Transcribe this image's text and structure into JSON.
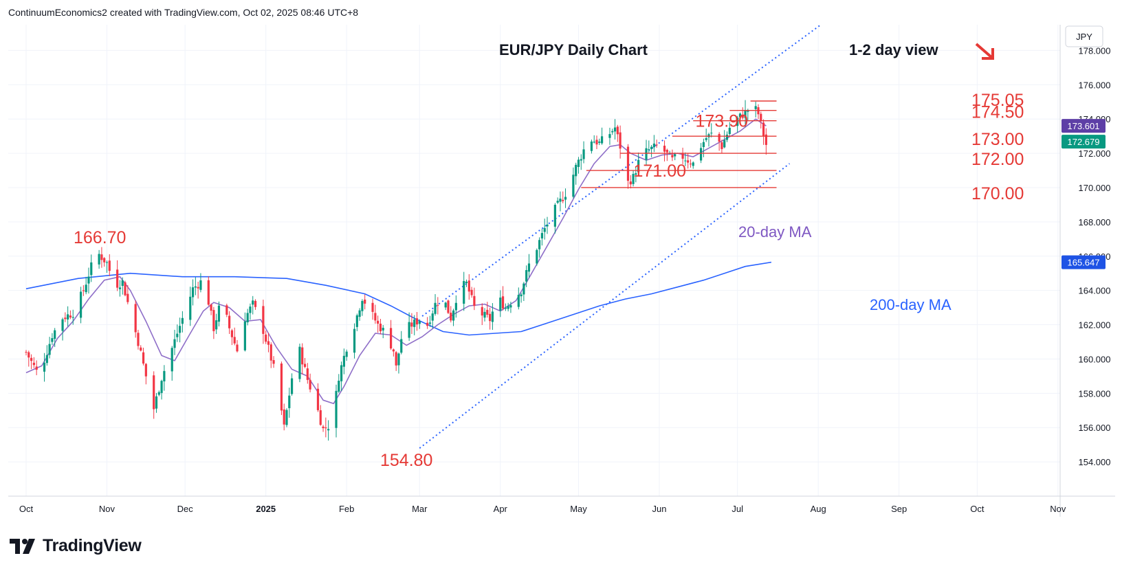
{
  "header": {
    "caption": "ContinuumEconomics2 created with TradingView.com, Oct 02, 2025 08:46 UTC+8"
  },
  "footer": {
    "brand": "TradingView"
  },
  "chart_data": {
    "type": "candlestick",
    "title": "EUR/JPY Daily Chart",
    "subtitle": "1-2 day view",
    "currency": "JPY",
    "y_ticks": [
      "154.000",
      "156.000",
      "158.000",
      "160.000",
      "162.000",
      "164.000",
      "166.000",
      "168.000",
      "170.000",
      "172.000",
      "174.000",
      "176.000",
      "178.000"
    ],
    "ylim": [
      152,
      179.5
    ],
    "x_ticks": [
      {
        "label": "Oct",
        "day": 0
      },
      {
        "label": "Nov",
        "day": 31
      },
      {
        "label": "Dec",
        "day": 61
      },
      {
        "label": "2025",
        "day": 92,
        "bold": true
      },
      {
        "label": "Feb",
        "day": 123
      },
      {
        "label": "Mar",
        "day": 151
      },
      {
        "label": "Apr",
        "day": 182
      },
      {
        "label": "May",
        "day": 212
      },
      {
        "label": "Jun",
        "day": 243
      },
      {
        "label": "Jul",
        "day": 273
      },
      {
        "label": "Aug",
        "day": 304
      },
      {
        "label": "Sep",
        "day": 335
      },
      {
        "label": "Oct",
        "day": 365
      },
      {
        "label": "Nov",
        "day": 396
      }
    ],
    "path_anchors": [
      [
        0,
        160.4
      ],
      [
        5,
        159.0
      ],
      [
        10,
        161.4
      ],
      [
        14,
        162.4
      ],
      [
        18,
        162.7
      ],
      [
        22,
        164.0
      ],
      [
        25,
        165.4
      ],
      [
        28,
        166.1
      ],
      [
        31,
        165.6
      ],
      [
        34,
        164.3
      ],
      [
        37,
        164.5
      ],
      [
        40,
        162.7
      ],
      [
        43,
        161.0
      ],
      [
        46,
        159.0
      ],
      [
        49,
        157.1
      ],
      [
        52,
        158.9
      ],
      [
        55,
        160.2
      ],
      [
        58,
        161.5
      ],
      [
        61,
        162.8
      ],
      [
        64,
        164.1
      ],
      [
        67,
        164.5
      ],
      [
        69,
        164.1
      ],
      [
        72,
        161.8
      ],
      [
        75,
        163.5
      ],
      [
        78,
        161.8
      ],
      [
        81,
        160.5
      ],
      [
        84,
        162.4
      ],
      [
        87,
        163.2
      ],
      [
        90,
        162.2
      ],
      [
        93,
        160.6
      ],
      [
        96,
        158.9
      ],
      [
        99,
        156.0
      ],
      [
        102,
        158.9
      ],
      [
        105,
        160.5
      ],
      [
        108,
        158.8
      ],
      [
        111,
        157.5
      ],
      [
        114,
        155.9
      ],
      [
        116,
        156.1
      ],
      [
        118,
        156.9
      ],
      [
        120,
        159.0
      ],
      [
        123,
        160.7
      ],
      [
        126,
        162.0
      ],
      [
        129,
        163.6
      ],
      [
        132,
        162.8
      ],
      [
        135,
        162.0
      ],
      [
        138,
        161.5
      ],
      [
        141,
        160.5
      ],
      [
        142,
        159.5
      ],
      [
        144,
        161.2
      ],
      [
        147,
        161.9
      ],
      [
        151,
        162.3
      ],
      [
        154,
        162.0
      ],
      [
        157,
        163.2
      ],
      [
        160,
        163.6
      ],
      [
        163,
        162.4
      ],
      [
        166,
        164.1
      ],
      [
        169,
        164.4
      ],
      [
        172,
        163.0
      ],
      [
        175,
        162.6
      ],
      [
        178,
        162.3
      ],
      [
        181,
        163.6
      ],
      [
        184,
        163.0
      ],
      [
        187,
        163.5
      ],
      [
        190,
        164.0
      ],
      [
        193,
        165.5
      ],
      [
        196,
        166.5
      ],
      [
        199,
        167.6
      ],
      [
        202,
        168.5
      ],
      [
        205,
        169.2
      ],
      [
        208,
        169.9
      ],
      [
        211,
        171.2
      ],
      [
        214,
        172.2
      ],
      [
        217,
        172.8
      ],
      [
        220,
        172.6
      ],
      [
        223,
        173.0
      ],
      [
        226,
        173.5
      ],
      [
        228,
        172.4
      ],
      [
        229,
        171.0
      ],
      [
        231,
        170.3
      ],
      [
        233,
        170.6
      ],
      [
        236,
        171.9
      ],
      [
        239,
        172.2
      ],
      [
        242,
        172.4
      ],
      [
        245,
        172.1
      ],
      [
        248,
        171.6
      ],
      [
        251,
        171.9
      ],
      [
        254,
        171.6
      ],
      [
        256,
        171.4
      ],
      [
        258,
        172.2
      ],
      [
        261,
        172.9
      ],
      [
        264,
        173.2
      ],
      [
        267,
        172.4
      ],
      [
        270,
        173.5
      ],
      [
        273,
        174.0
      ],
      [
        276,
        174.4
      ],
      [
        279,
        174.8
      ],
      [
        281,
        174.3
      ],
      [
        283,
        173.1
      ],
      [
        284,
        172.5
      ],
      [
        286,
        172.68
      ]
    ],
    "ma20": [
      [
        0,
        159.2
      ],
      [
        6,
        159.6
      ],
      [
        12,
        161.2
      ],
      [
        18,
        162.2
      ],
      [
        24,
        163.5
      ],
      [
        30,
        164.6
      ],
      [
        36,
        164.8
      ],
      [
        40,
        164.0
      ],
      [
        46,
        162.2
      ],
      [
        52,
        160.2
      ],
      [
        57,
        159.9
      ],
      [
        63,
        161.5
      ],
      [
        68,
        162.8
      ],
      [
        72,
        163.3
      ],
      [
        78,
        163.0
      ],
      [
        84,
        162.2
      ],
      [
        90,
        162.3
      ],
      [
        96,
        160.7
      ],
      [
        102,
        159.4
      ],
      [
        108,
        159.0
      ],
      [
        114,
        157.6
      ],
      [
        118,
        157.4
      ],
      [
        122,
        158.4
      ],
      [
        128,
        160.2
      ],
      [
        134,
        161.5
      ],
      [
        140,
        161.4
      ],
      [
        146,
        160.8
      ],
      [
        152,
        161.3
      ],
      [
        158,
        162.0
      ],
      [
        164,
        162.6
      ],
      [
        170,
        163.1
      ],
      [
        176,
        163.2
      ],
      [
        182,
        162.8
      ],
      [
        188,
        163.4
      ],
      [
        194,
        165.0
      ],
      [
        200,
        166.6
      ],
      [
        206,
        168.2
      ],
      [
        212,
        169.9
      ],
      [
        218,
        171.4
      ],
      [
        224,
        172.4
      ],
      [
        228,
        172.5
      ],
      [
        232,
        172.0
      ],
      [
        238,
        171.6
      ],
      [
        244,
        171.9
      ],
      [
        250,
        172.0
      ],
      [
        256,
        171.8
      ],
      [
        262,
        172.3
      ],
      [
        268,
        172.8
      ],
      [
        274,
        173.3
      ],
      [
        280,
        174.0
      ],
      [
        284,
        173.601
      ]
    ],
    "ma200": [
      [
        0,
        164.1
      ],
      [
        20,
        164.7
      ],
      [
        40,
        165.0
      ],
      [
        60,
        164.8
      ],
      [
        80,
        164.8
      ],
      [
        100,
        164.7
      ],
      [
        115,
        164.3
      ],
      [
        130,
        163.8
      ],
      [
        140,
        163.1
      ],
      [
        150,
        162.3
      ],
      [
        160,
        161.6
      ],
      [
        170,
        161.4
      ],
      [
        180,
        161.5
      ],
      [
        190,
        161.6
      ],
      [
        200,
        162.1
      ],
      [
        210,
        162.6
      ],
      [
        220,
        163.1
      ],
      [
        230,
        163.5
      ],
      [
        240,
        163.8
      ],
      [
        250,
        164.2
      ],
      [
        260,
        164.6
      ],
      [
        268,
        165.0
      ],
      [
        276,
        165.4
      ],
      [
        286,
        165.647
      ]
    ],
    "channel_upper": [
      [
        152,
        162.5
      ],
      [
        305,
        179.5
      ]
    ],
    "channel_lower": [
      [
        151,
        154.8
      ],
      [
        293,
        171.4
      ]
    ],
    "levels": [
      {
        "value": 175.05,
        "label": "175.05",
        "x0": 278,
        "x1": 288
      },
      {
        "value": 174.5,
        "label": "174.50",
        "x0": 270,
        "x1": 288
      },
      {
        "value": 173.9,
        "label": "173.90",
        "x0": 256,
        "x1": 288
      },
      {
        "value": 173.0,
        "label": "173.00",
        "x0": 248,
        "x1": 288
      },
      {
        "value": 172.0,
        "label": "172.00",
        "x0": 228,
        "x1": 288
      },
      {
        "value": 171.0,
        "label": "171.00",
        "x0": 215,
        "x1": 288
      },
      {
        "value": 170.0,
        "label": "170.00",
        "x0": 213,
        "x1": 288
      }
    ],
    "annotations": [
      {
        "text": "166.70",
        "day": 28,
        "price": 166.7
      },
      {
        "text": "154.80",
        "day": 151,
        "price": 154.8
      },
      {
        "text": "20-day MA"
      },
      {
        "text": "200-day MA"
      }
    ],
    "last_prices": [
      {
        "label": "173.601",
        "value": 173.601,
        "color": "#5d3fa6"
      },
      {
        "label": "172.679",
        "value": 172.679,
        "color": "#089981"
      },
      {
        "label": "165.647",
        "value": 165.647,
        "color": "#1e53e5"
      }
    ],
    "colors": {
      "up": "#089981",
      "down": "#f23645",
      "ma20": "#8e6ec8",
      "ma200": "#2962ff",
      "channel": "#2962ff",
      "level": "#e53935",
      "arrow": "#e53935"
    }
  }
}
